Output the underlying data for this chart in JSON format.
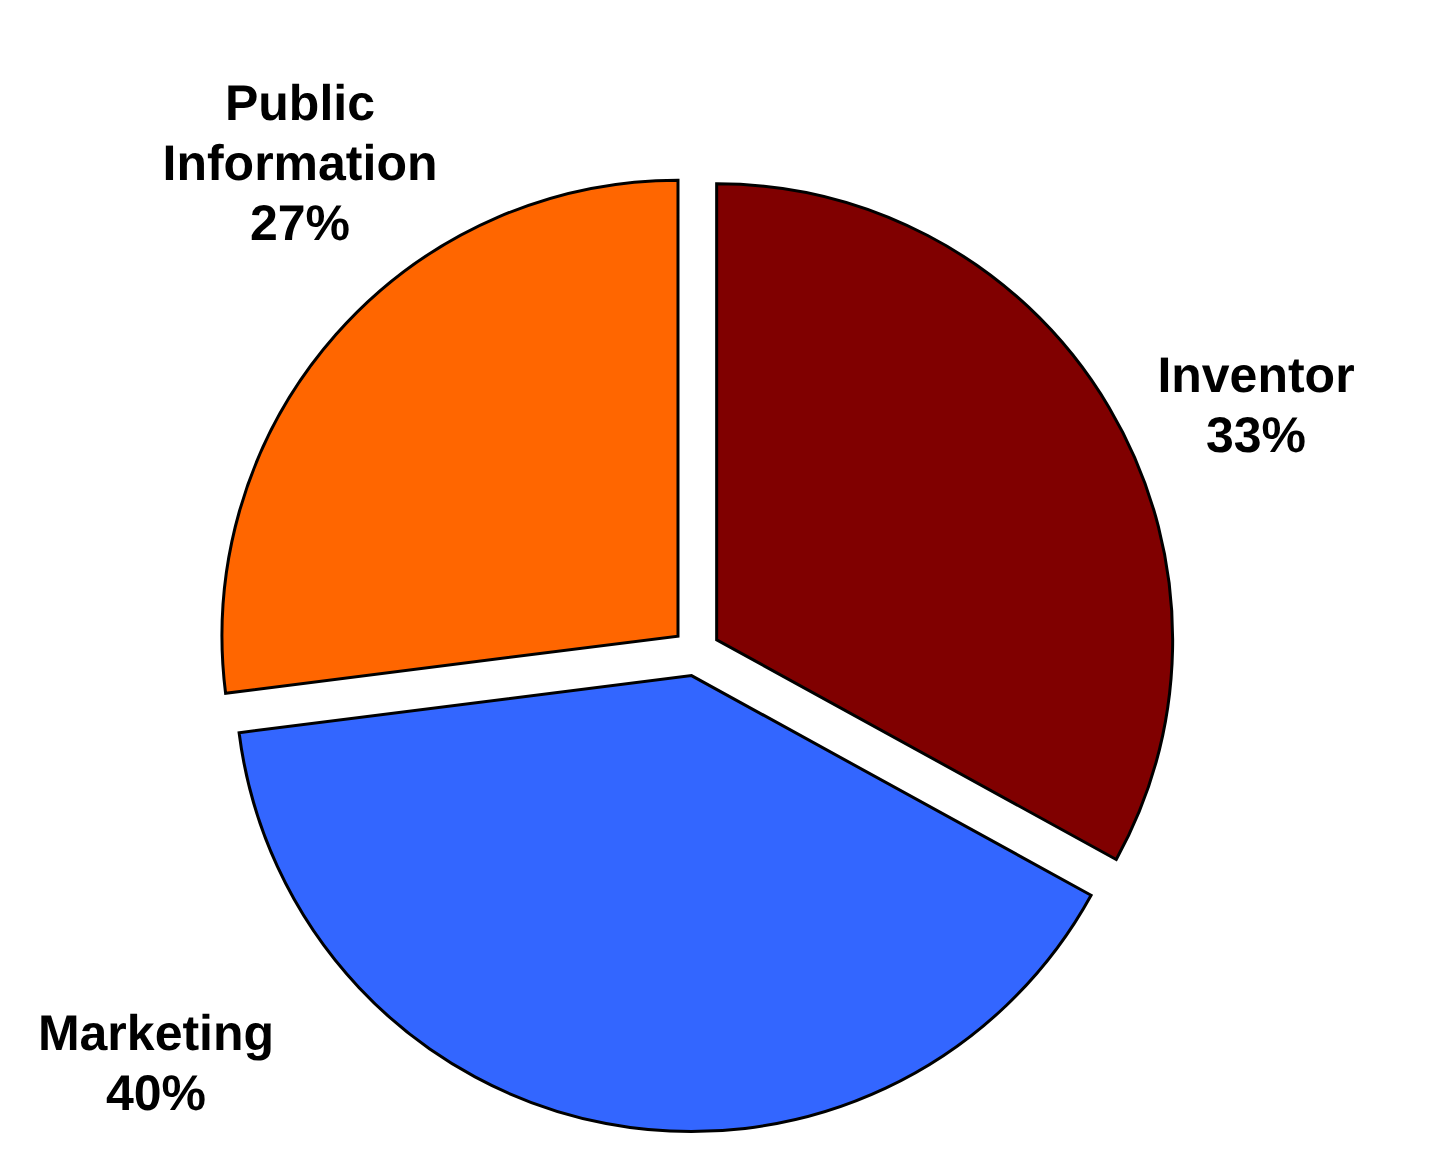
{
  "chart_data": {
    "type": "pie",
    "categories": [
      "Inventor",
      "Marketing",
      "Public Information"
    ],
    "values": [
      33,
      40,
      27
    ],
    "value_labels": [
      "33%",
      "40%",
      "27%"
    ],
    "colors": [
      "#800000",
      "#3366ff",
      "#ff6600"
    ]
  }
}
